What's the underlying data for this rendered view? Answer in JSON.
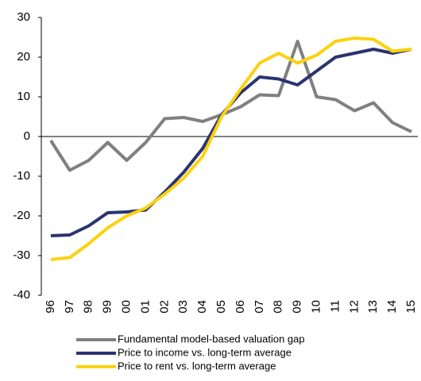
{
  "chart_data": {
    "type": "line",
    "categories": [
      "96",
      "97",
      "98",
      "99",
      "00",
      "01",
      "02",
      "03",
      "04",
      "05",
      "06",
      "07",
      "08",
      "09",
      "10",
      "11",
      "12",
      "13",
      "14",
      "15"
    ],
    "series": [
      {
        "name": "Fundamental model-based valuation gap",
        "color": "#808080",
        "values": [
          -1,
          -8.5,
          -6,
          -1.5,
          -6,
          -1.5,
          4.5,
          4.8,
          3.8,
          5.5,
          7.5,
          10.5,
          10.3,
          24,
          10,
          9.3,
          6.5,
          8.5,
          3.5,
          1.2
        ]
      },
      {
        "name": "Price to income vs. long-term average",
        "color": "#2b3470",
        "values": [
          -25,
          -24.8,
          -22.5,
          -19.2,
          -19,
          -18.5,
          -14,
          -9,
          -3,
          5.5,
          11,
          15,
          14.5,
          13,
          16.5,
          20,
          21,
          22,
          21,
          22
        ]
      },
      {
        "name": "Price to rent vs. long-term average",
        "color": "#fcd20f",
        "values": [
          -31,
          -30.5,
          -27,
          -23,
          -20,
          -18,
          -14.5,
          -10.5,
          -5,
          5,
          12,
          18.5,
          21,
          18.5,
          20.5,
          24,
          24.8,
          24.5,
          21.5,
          22
        ]
      }
    ],
    "ylim": [
      -40,
      30
    ],
    "yticks": [
      -40,
      -30,
      -20,
      -10,
      0,
      10,
      20,
      30
    ],
    "legend": "bottom"
  }
}
